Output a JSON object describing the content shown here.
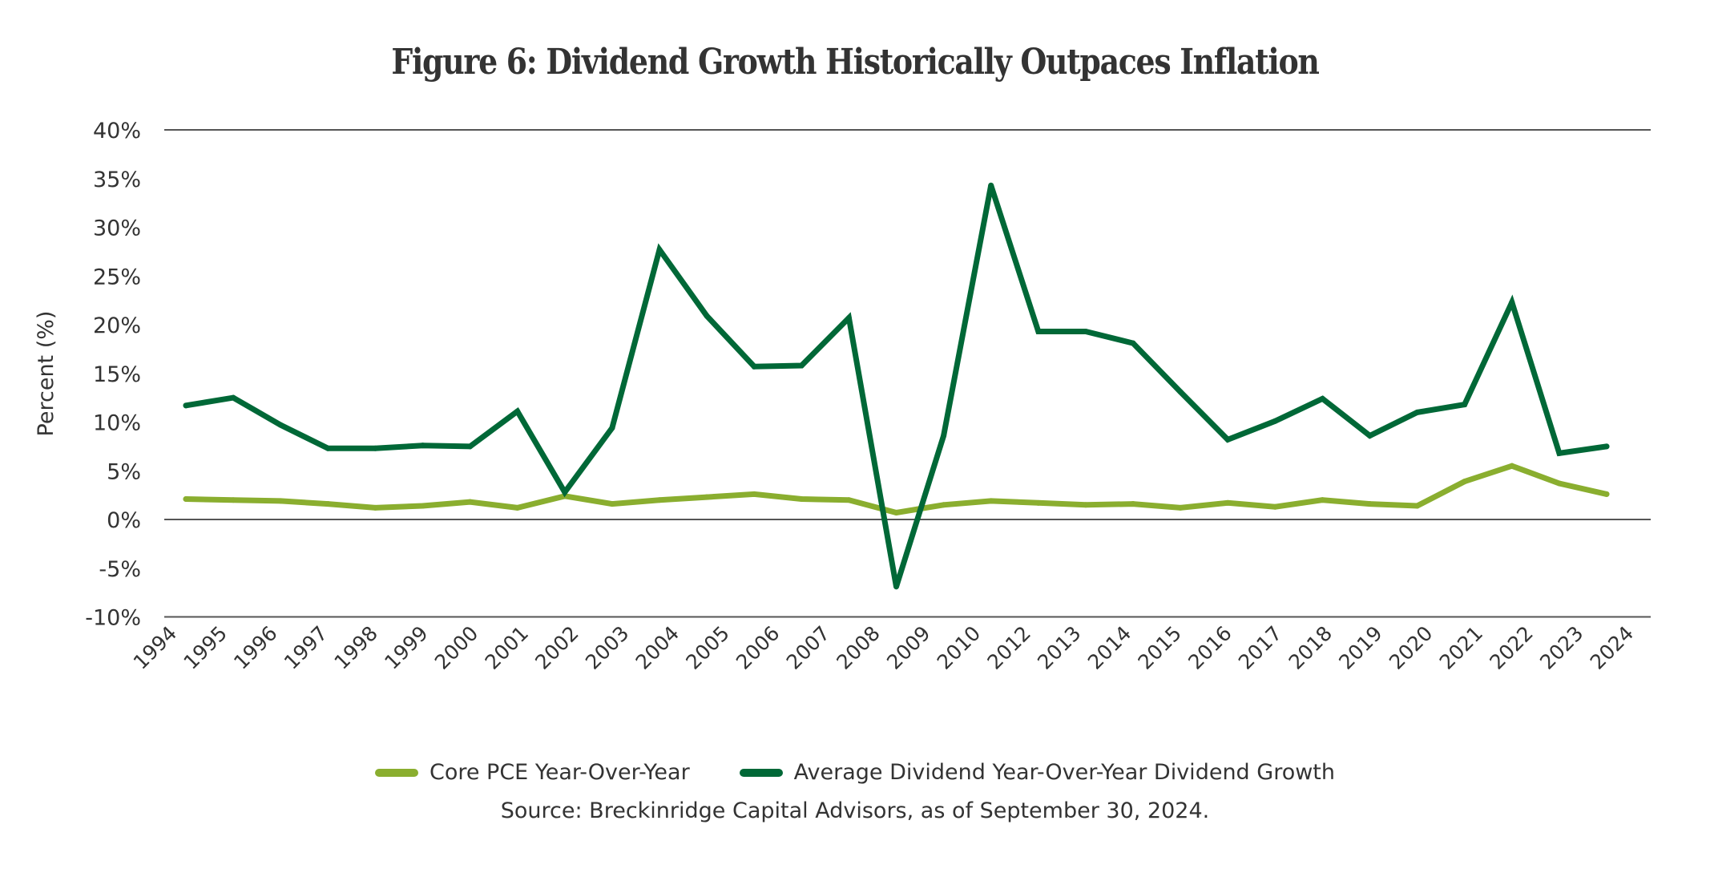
{
  "chart_data": {
    "type": "line",
    "title": "Figure 6: Dividend Growth Historically Outpaces Inflation",
    "xlabel": "",
    "ylabel": "Percent (%)",
    "ylim": [
      -10,
      40
    ],
    "yticks": [
      40,
      35,
      30,
      25,
      20,
      15,
      10,
      5,
      0,
      -5,
      -10
    ],
    "ytick_labels": [
      "40%",
      "35%",
      "30%",
      "25%",
      "20%",
      "15%",
      "10%",
      "5%",
      "0%",
      "-5%",
      "-10%"
    ],
    "gridlines_at": [
      40,
      0,
      -10
    ],
    "x_tick_labels": [
      "1994",
      "1995",
      "1996",
      "1997",
      "1998",
      "1999",
      "2000",
      "2001",
      "2002",
      "2003",
      "2004",
      "2005",
      "2006",
      "2007",
      "2008",
      "2009",
      "2010",
      "2012",
      "2013",
      "2014",
      "2015",
      "2016",
      "2017",
      "2018",
      "2019",
      "2020",
      "2021",
      "2022",
      "2023",
      "2024"
    ],
    "x": [
      "1994",
      "1995",
      "1996",
      "1997",
      "1998",
      "1999",
      "2000",
      "2001",
      "2002",
      "2003",
      "2004",
      "2005",
      "2006",
      "2007",
      "2008",
      "2009",
      "2010",
      "2011",
      "2012",
      "2013",
      "2014",
      "2015",
      "2016",
      "2017",
      "2018",
      "2019",
      "2020",
      "2021",
      "2022",
      "2023",
      "2024"
    ],
    "series": [
      {
        "name": "Core PCE Year-Over-Year",
        "color": "#8aae2f",
        "values": [
          2.1,
          2.0,
          1.9,
          1.6,
          1.2,
          1.4,
          1.8,
          1.2,
          2.4,
          1.6,
          2.0,
          2.3,
          2.6,
          2.1,
          2.0,
          0.7,
          1.5,
          1.9,
          1.7,
          1.5,
          1.6,
          1.2,
          1.7,
          1.3,
          2.0,
          1.6,
          1.4,
          3.9,
          5.5,
          3.7,
          2.6
        ]
      },
      {
        "name": "Average Dividend Year-Over-Year Dividend Growth",
        "color": "#006837",
        "values": [
          11.7,
          12.5,
          9.7,
          7.3,
          7.3,
          7.6,
          7.5,
          11.1,
          2.8,
          9.4,
          27.7,
          20.9,
          15.7,
          15.8,
          20.7,
          -6.9,
          8.6,
          34.3,
          19.3,
          19.3,
          18.1,
          13.1,
          8.2,
          10.1,
          12.4,
          8.6,
          11.0,
          11.8,
          22.3,
          6.8,
          7.5
        ]
      }
    ],
    "legend_position": "bottom-center",
    "source": "Source: Breckinridge Capital Advisors, as of September 30, 2024."
  }
}
